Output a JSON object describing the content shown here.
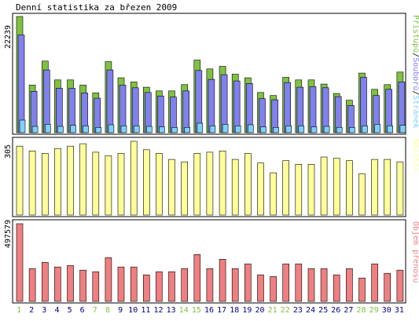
{
  "title": "Denní statistika za březen 2009",
  "colors": {
    "access": "#7fc241",
    "files": "#8080ee",
    "pages": "#80d0f8",
    "visits": "#ffff99",
    "traffic": "#ef7f80",
    "weekend": "#7fc241",
    "weekday": "#000080",
    "frame": "#000000",
    "background": "#ffffff",
    "legend_sep": "#000000"
  },
  "legend": {
    "top": [
      "Stránek",
      "Souborů",
      "Přístupů"
    ],
    "visits": "Návštěv",
    "traffic": "Objem přenosu"
  },
  "chart_data": [
    {
      "type": "bar",
      "panel": "hits",
      "ylabel": "22239",
      "ymax": 22239,
      "categories": [
        "1",
        "2",
        "3",
        "4",
        "5",
        "6",
        "7",
        "8",
        "9",
        "10",
        "11",
        "12",
        "13",
        "14",
        "15",
        "16",
        "17",
        "18",
        "19",
        "20",
        "21",
        "22",
        "23",
        "24",
        "25",
        "26",
        "27",
        "28",
        "29",
        "30",
        "31"
      ],
      "weekend_days": [
        "1",
        "7",
        "8",
        "14",
        "15",
        "21",
        "22",
        "28",
        "29"
      ],
      "series": [
        {
          "name": "Přístupů",
          "values": [
            22239,
            9100,
            13700,
            10100,
            10100,
            9100,
            7600,
            13600,
            10500,
            9700,
            8700,
            8000,
            8000,
            9200,
            13900,
            12200,
            12700,
            11200,
            10500,
            7700,
            7100,
            10600,
            10100,
            10100,
            9300,
            7500,
            6200,
            11400,
            8300,
            9200,
            11600
          ]
        },
        {
          "name": "Souborů",
          "values": [
            18700,
            7900,
            12000,
            8500,
            8500,
            7600,
            6600,
            12000,
            9100,
            8600,
            7700,
            7000,
            6800,
            8000,
            11900,
            10200,
            11100,
            9900,
            9400,
            6500,
            6300,
            9600,
            8700,
            8800,
            8600,
            6900,
            5200,
            10600,
            7100,
            8300,
            9700
          ]
        },
        {
          "name": "Stránek",
          "values": [
            2400,
            1200,
            1600,
            1200,
            1400,
            1300,
            1000,
            1500,
            1300,
            1300,
            1200,
            1100,
            1000,
            1000,
            1800,
            1300,
            1600,
            1300,
            1500,
            1100,
            1000,
            1300,
            1300,
            1100,
            1200,
            1000,
            1000,
            1300,
            1600,
            1300,
            1400
          ]
        }
      ]
    },
    {
      "type": "bar",
      "panel": "visits",
      "ylabel": "305",
      "ymax": 305,
      "categories": [
        "1",
        "2",
        "3",
        "4",
        "5",
        "6",
        "7",
        "8",
        "9",
        "10",
        "11",
        "12",
        "13",
        "14",
        "15",
        "16",
        "17",
        "18",
        "19",
        "20",
        "21",
        "22",
        "23",
        "24",
        "25",
        "26",
        "27",
        "28",
        "29",
        "30",
        "31"
      ],
      "series": [
        {
          "name": "Návštěv",
          "values": [
            285,
            265,
            255,
            275,
            285,
            295,
            260,
            245,
            255,
            305,
            270,
            255,
            230,
            220,
            255,
            260,
            265,
            230,
            255,
            215,
            175,
            225,
            210,
            210,
            240,
            235,
            225,
            170,
            230,
            230,
            220
          ]
        }
      ]
    },
    {
      "type": "bar",
      "panel": "traffic",
      "ylabel": "497579",
      "ymax": 497579,
      "categories": [
        "1",
        "2",
        "3",
        "4",
        "5",
        "6",
        "7",
        "8",
        "9",
        "10",
        "11",
        "12",
        "13",
        "14",
        "15",
        "16",
        "17",
        "18",
        "19",
        "20",
        "21",
        "22",
        "23",
        "24",
        "25",
        "26",
        "27",
        "28",
        "29",
        "30",
        "31"
      ],
      "series": [
        {
          "name": "Objem přenosu",
          "values": [
            497579,
            210000,
            250000,
            220000,
            230000,
            200000,
            190000,
            280000,
            220000,
            220000,
            170000,
            190000,
            190000,
            210000,
            300000,
            210000,
            270000,
            210000,
            240000,
            170000,
            160000,
            240000,
            240000,
            210000,
            210000,
            170000,
            210000,
            150000,
            240000,
            180000,
            200000
          ]
        }
      ]
    }
  ]
}
